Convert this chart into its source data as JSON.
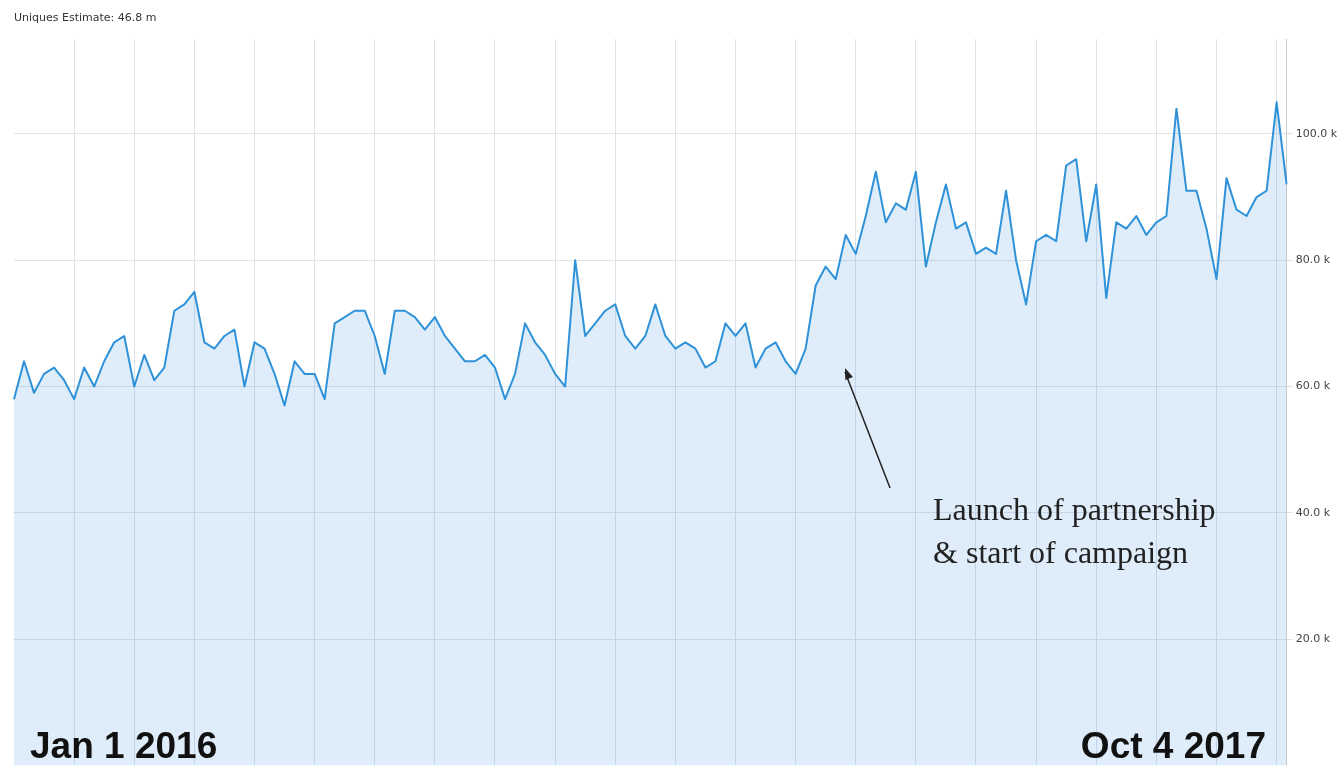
{
  "chart_data": {
    "type": "area",
    "title": "Uniques Estimate: 46.8 m",
    "categories": [
      null,
      null,
      null,
      null,
      null,
      null,
      null,
      null,
      null,
      null,
      null,
      null,
      null,
      null,
      null,
      null,
      null,
      null,
      null,
      null,
      null,
      null,
      null,
      null,
      null,
      null,
      null,
      null,
      null,
      null,
      null,
      null,
      null,
      null,
      null,
      null,
      null,
      null,
      null,
      null,
      null,
      null,
      null,
      null,
      null,
      null,
      null,
      null,
      null,
      null,
      null,
      null,
      null,
      null,
      null,
      null,
      null,
      null,
      null,
      null,
      null,
      null,
      null,
      null,
      null,
      null,
      null,
      null,
      null,
      null,
      null,
      null,
      null,
      null,
      null,
      null,
      null,
      null,
      null,
      null,
      null,
      null,
      null,
      null,
      null,
      null,
      null,
      null,
      null,
      null,
      null,
      null,
      null,
      null,
      null,
      null,
      null,
      null,
      null,
      null,
      null,
      null,
      null,
      null,
      null,
      null,
      null,
      null,
      null,
      null,
      null,
      null,
      null,
      null,
      null,
      null,
      null,
      null,
      null,
      null,
      null,
      null,
      null,
      null,
      null,
      null,
      null,
      null
    ],
    "series": [
      {
        "color": "#2f92d8",
        "values": [
          58,
          64,
          59,
          62,
          63,
          61,
          58,
          63,
          60,
          64,
          67,
          68,
          60,
          65,
          61,
          63,
          72,
          73,
          75,
          67,
          66,
          68,
          69,
          60,
          67,
          66,
          62,
          57,
          64,
          62,
          62,
          58,
          70,
          71,
          72,
          72,
          68,
          62,
          72,
          72,
          71,
          69,
          71,
          68,
          66,
          64,
          64,
          65,
          63,
          58,
          62,
          70,
          67,
          65,
          62,
          60,
          80,
          68,
          70,
          72,
          73,
          68,
          66,
          68,
          73,
          68,
          66,
          67,
          66,
          63,
          64,
          70,
          68,
          70,
          63,
          66,
          67,
          64,
          62,
          66,
          76,
          79,
          77,
          84,
          81,
          87,
          94,
          86,
          89,
          88,
          94,
          79,
          86,
          92,
          85,
          86,
          81,
          82,
          81,
          91,
          80,
          73,
          83,
          84,
          83,
          95,
          96,
          83,
          92,
          74,
          86,
          85,
          87,
          84,
          86,
          87,
          104,
          91,
          91,
          85,
          77,
          93,
          88,
          87,
          90,
          91,
          105,
          92
        ]
      }
    ],
    "ylim": [
      0,
      115
    ],
    "yticks": [
      {
        "value": 20,
        "label": "20.0 k"
      },
      {
        "value": 40,
        "label": "40.0 k"
      },
      {
        "value": 60,
        "label": "60.0 k"
      },
      {
        "value": 80,
        "label": "80.0 k"
      },
      {
        "value": 100,
        "label": "100.0 k"
      }
    ],
    "grid": true,
    "tick_labels": "y",
    "legend": false,
    "annotations": [
      "Launch of partnership & start of campaign",
      "Jan 1 2016",
      "Oct 4 2017"
    ]
  }
}
